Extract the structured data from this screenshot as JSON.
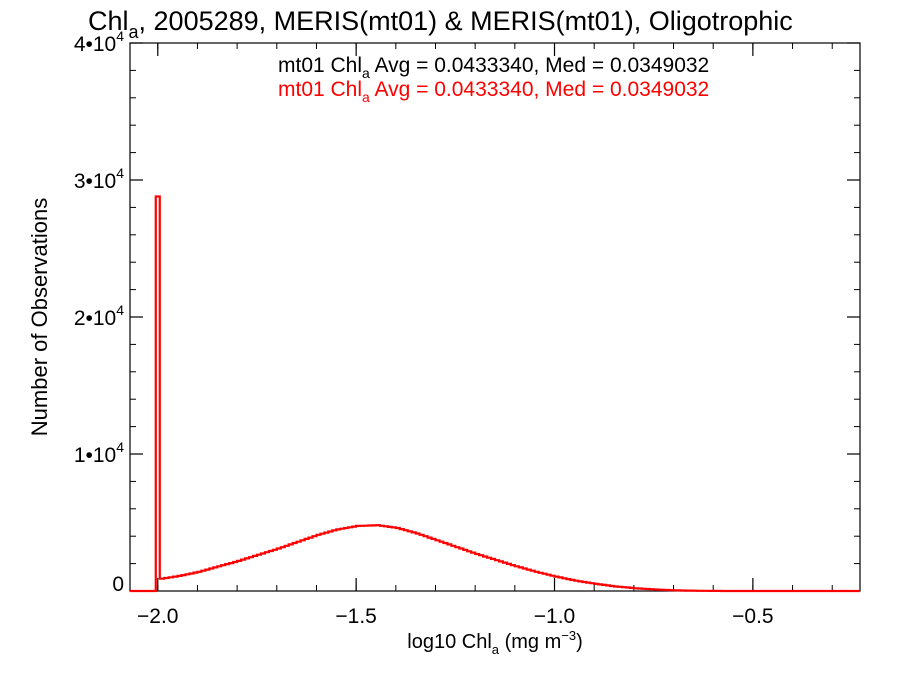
{
  "chart_data": {
    "type": "histogram-step",
    "title": {
      "main_prefix": "Chl",
      "main_sub": "a",
      "main_suffix": ", 2005289, MERIS(mt01) & MERIS(mt01), Oligotrophic"
    },
    "xlabel": {
      "prefix": "log10 Chl",
      "sub": "a",
      "middle": " (mg m",
      "sup": "−3",
      "suffix": ")"
    },
    "ylabel": "Number of Observations",
    "xlim": [
      -2.07,
      -0.23
    ],
    "ylim": [
      0,
      40000
    ],
    "x_ticks": [
      {
        "value": -2.0,
        "label": "−2.0"
      },
      {
        "value": -1.5,
        "label": "−1.5"
      },
      {
        "value": -1.0,
        "label": "−1.0"
      },
      {
        "value": -0.5,
        "label": "−0.5"
      }
    ],
    "y_ticks": [
      {
        "value": 0,
        "base": "0",
        "exp": ""
      },
      {
        "value": 10000,
        "base": "1•10",
        "exp": "4"
      },
      {
        "value": 20000,
        "base": "2•10",
        "exp": "4"
      },
      {
        "value": 30000,
        "base": "3•10",
        "exp": "4"
      },
      {
        "value": 40000,
        "base": "4•10",
        "exp": "4"
      }
    ],
    "x_minor_step": 0.1,
    "y_minor_step": 2000,
    "grid": false,
    "legend": [
      {
        "name": "mt01",
        "prefix": "mt01 Chl",
        "sub": "a",
        "suffix": " Avg = 0.0433340, Med = 0.0349032",
        "color": "#000000"
      },
      {
        "name": "mt01",
        "prefix": "mt01 Chl",
        "sub": "a",
        "suffix": " Avg = 0.0433340, Med = 0.0349032",
        "color": "#ff0000"
      }
    ],
    "legend_position": "top-right",
    "series": [
      {
        "name": "mt01",
        "color": "#ff0000",
        "spike": {
          "x": -2.0,
          "value": 28800
        },
        "points": [
          [
            -2.0,
            900
          ],
          [
            -1.95,
            1100
          ],
          [
            -1.9,
            1400
          ],
          [
            -1.85,
            1800
          ],
          [
            -1.8,
            2200
          ],
          [
            -1.75,
            2650
          ],
          [
            -1.7,
            3100
          ],
          [
            -1.65,
            3600
          ],
          [
            -1.6,
            4100
          ],
          [
            -1.55,
            4500
          ],
          [
            -1.5,
            4750
          ],
          [
            -1.45,
            4800
          ],
          [
            -1.4,
            4600
          ],
          [
            -1.35,
            4200
          ],
          [
            -1.3,
            3700
          ],
          [
            -1.25,
            3200
          ],
          [
            -1.2,
            2700
          ],
          [
            -1.15,
            2250
          ],
          [
            -1.1,
            1800
          ],
          [
            -1.05,
            1400
          ],
          [
            -1.0,
            1050
          ],
          [
            -0.95,
            750
          ],
          [
            -0.9,
            520
          ],
          [
            -0.85,
            330
          ],
          [
            -0.8,
            200
          ],
          [
            -0.75,
            110
          ],
          [
            -0.7,
            50
          ],
          [
            -0.65,
            20
          ],
          [
            -0.6,
            5
          ],
          [
            -0.55,
            0
          ],
          [
            -0.5,
            0
          ],
          [
            -0.23,
            0
          ]
        ]
      }
    ]
  }
}
